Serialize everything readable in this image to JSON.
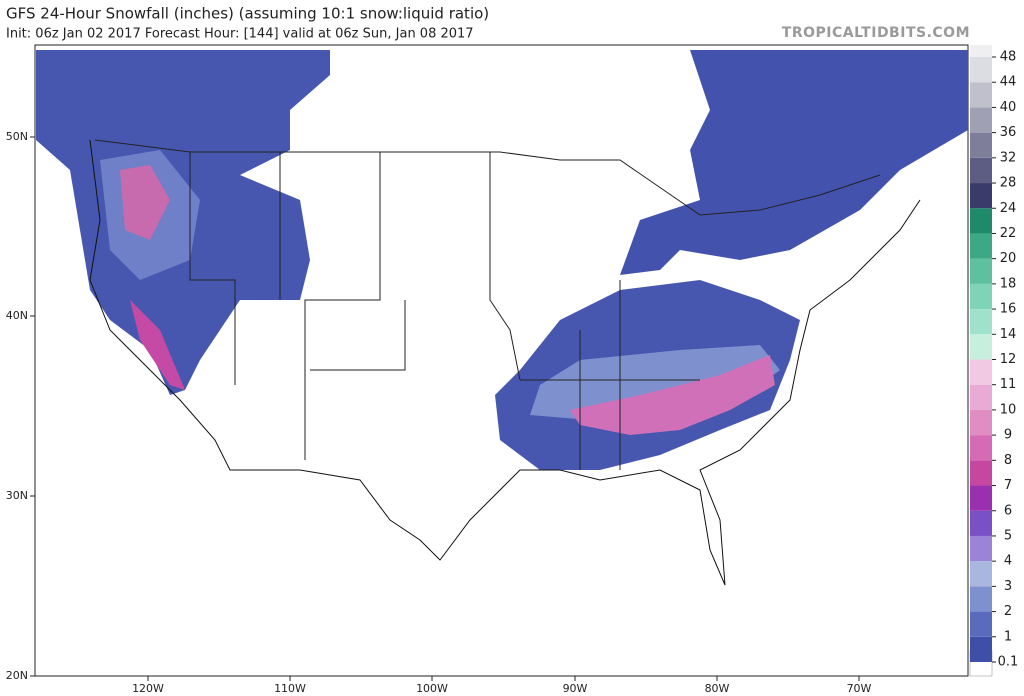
{
  "header": {
    "title": "GFS 24-Hour Snowfall (inches) (assuming 10:1 snow:liquid ratio)",
    "subtitle": "Init: 06z Jan 02 2017   Forecast Hour: [144]   valid at 06z Sun, Jan 08 2017",
    "watermark": "TROPICALTIDBITS.COM"
  },
  "map": {
    "lat_labels": [
      "50N",
      "40N",
      "30N",
      "20N"
    ],
    "lon_labels": [
      "120W",
      "110W",
      "100W",
      "90W",
      "80W",
      "70W"
    ]
  },
  "colorbar": {
    "levels": [
      0.1,
      1,
      2,
      3,
      4,
      5,
      6,
      7,
      8,
      9,
      10,
      11,
      12,
      14,
      16,
      18,
      20,
      22,
      24,
      28,
      32,
      36,
      40,
      44,
      48
    ],
    "colors": [
      "#3f4ea6",
      "#5a6bbd",
      "#7f90cf",
      "#a9b6e0",
      "#9b84d8",
      "#7a50c6",
      "#9a2fb0",
      "#c5479f",
      "#d56bb4",
      "#e08dc4",
      "#e9abd5",
      "#f2c9e3",
      "#c8eede",
      "#a0e1cc",
      "#7fd3b7",
      "#5ec09f",
      "#3ca886",
      "#1f8a69",
      "#3b3b6b",
      "#5d5d84",
      "#7e7e9b",
      "#a0a0b4",
      "#c0c0cc",
      "#dcdce3"
    ]
  }
}
